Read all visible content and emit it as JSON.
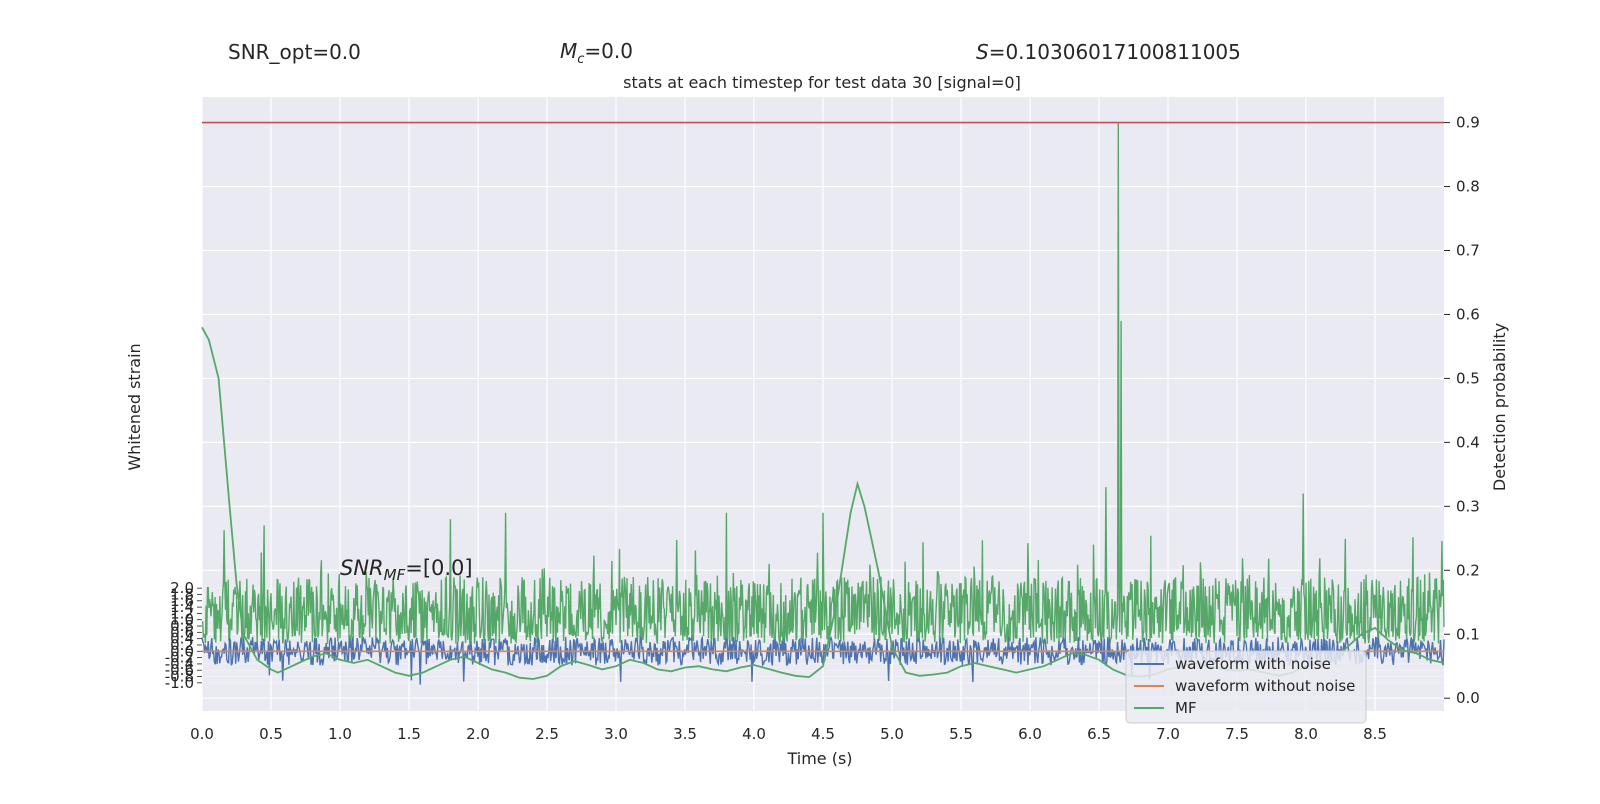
{
  "chart_data": {
    "type": "line",
    "title": "stats at each timestep for test data 30 [signal=0]",
    "header_texts": {
      "snr_opt": "SNR_opt=0.0",
      "mc": "=0.0",
      "mc_symbol": "M",
      "mc_sub": "c",
      "s": "=0.10306017100811005",
      "s_symbol": "S"
    },
    "annotation": {
      "symbol": "SNR",
      "sub": "MF",
      "suffix": "=[0.0]"
    },
    "xlabel": "Time (s)",
    "ylabel_left": "Whitened strain",
    "ylabel_right": "Detection probability",
    "xlim": [
      0.0,
      9.0
    ],
    "x_ticks": [
      "0.0",
      "0.5",
      "1.0",
      "1.5",
      "2.0",
      "2.5",
      "3.0",
      "3.5",
      "4.0",
      "4.5",
      "5.0",
      "5.5",
      "6.0",
      "6.5",
      "7.0",
      "7.5",
      "8.0",
      "8.5"
    ],
    "right_ylim": [
      -0.02,
      0.94
    ],
    "right_ticks": [
      "0.0",
      "0.1",
      "0.2",
      "0.3",
      "0.4",
      "0.5",
      "0.6",
      "0.7",
      "0.8",
      "0.9"
    ],
    "left_ylim": [
      -1.1,
      2.1
    ],
    "left_ticks": [
      "-1.0",
      "-0.8",
      "-0.6",
      "-0.4",
      "-0.2",
      "0.0",
      "0.2",
      "0.4",
      "0.6",
      "0.8",
      "1.0",
      "1.2",
      "1.4",
      "1.6",
      "1.8",
      "2.0"
    ],
    "threshold": 0.9,
    "grid": true,
    "legend_position": "lower-right",
    "series": [
      {
        "name": "waveform with noise",
        "color": "#4c72b0",
        "kind": "noise band",
        "mean_strain": 0.0,
        "amplitude": 0.15
      },
      {
        "name": "waveform without noise",
        "color": "#dd8452",
        "kind": "flat line",
        "value_strain": 0.0
      },
      {
        "name": "MF",
        "color": "#55a868",
        "kind": "smooth curve",
        "axis": "right",
        "x": [
          0.0,
          0.05,
          0.12,
          0.2,
          0.25,
          0.3,
          0.4,
          0.5,
          0.55,
          0.6,
          0.7,
          0.8,
          0.9,
          1.0,
          1.1,
          1.2,
          1.3,
          1.4,
          1.5,
          1.6,
          1.7,
          1.8,
          1.9,
          2.0,
          2.1,
          2.2,
          2.3,
          2.4,
          2.5,
          2.6,
          2.7,
          2.8,
          2.9,
          3.0,
          3.1,
          3.2,
          3.3,
          3.4,
          3.5,
          3.6,
          3.7,
          3.8,
          3.9,
          4.0,
          4.1,
          4.2,
          4.3,
          4.4,
          4.5,
          4.6,
          4.7,
          4.75,
          4.8,
          4.9,
          5.0,
          5.1,
          5.2,
          5.3,
          5.4,
          5.5,
          5.6,
          5.7,
          5.8,
          5.9,
          6.0,
          6.1,
          6.2,
          6.3,
          6.4,
          6.5,
          6.6,
          6.7,
          6.8,
          6.9,
          7.0,
          7.1,
          7.2,
          7.3,
          7.4,
          7.5,
          7.6,
          7.7,
          7.8,
          7.9,
          8.0,
          8.1,
          8.2,
          8.3,
          8.4,
          8.5,
          8.6,
          8.7,
          8.8,
          8.9,
          9.0
        ],
        "y": [
          0.58,
          0.56,
          0.5,
          0.3,
          0.18,
          0.1,
          0.06,
          0.045,
          0.04,
          0.045,
          0.055,
          0.065,
          0.07,
          0.06,
          0.055,
          0.06,
          0.05,
          0.04,
          0.035,
          0.04,
          0.05,
          0.06,
          0.065,
          0.055,
          0.045,
          0.04,
          0.032,
          0.03,
          0.035,
          0.05,
          0.058,
          0.052,
          0.045,
          0.05,
          0.06,
          0.055,
          0.045,
          0.042,
          0.048,
          0.05,
          0.045,
          0.042,
          0.048,
          0.052,
          0.046,
          0.04,
          0.035,
          0.033,
          0.05,
          0.15,
          0.29,
          0.335,
          0.3,
          0.2,
          0.08,
          0.04,
          0.035,
          0.037,
          0.04,
          0.05,
          0.055,
          0.05,
          0.045,
          0.04,
          0.045,
          0.05,
          0.06,
          0.07,
          0.068,
          0.06,
          0.045,
          0.036,
          0.034,
          0.037,
          0.045,
          0.05,
          0.055,
          0.05,
          0.045,
          0.043,
          0.045,
          0.04,
          0.035,
          0.04,
          0.05,
          0.055,
          0.06,
          0.08,
          0.1,
          0.11,
          0.09,
          0.075,
          0.07,
          0.06,
          0.055
        ]
      },
      {
        "name": "detection probability",
        "color": "#55a868",
        "kind": "noisy series",
        "axis": "right",
        "baseline": 0.13,
        "typical_peak": 0.23,
        "spikes": [
          {
            "x": 0.45,
            "y": 0.27
          },
          {
            "x": 1.8,
            "y": 0.28
          },
          {
            "x": 2.2,
            "y": 0.29
          },
          {
            "x": 3.8,
            "y": 0.29
          },
          {
            "x": 4.5,
            "y": 0.29
          },
          {
            "x": 6.55,
            "y": 0.33
          },
          {
            "x": 6.64,
            "y": 0.9
          },
          {
            "x": 6.66,
            "y": 0.59
          },
          {
            "x": 7.98,
            "y": 0.32
          }
        ]
      }
    ],
    "legend": [
      "waveform with noise",
      "waveform without noise",
      "MF"
    ]
  }
}
